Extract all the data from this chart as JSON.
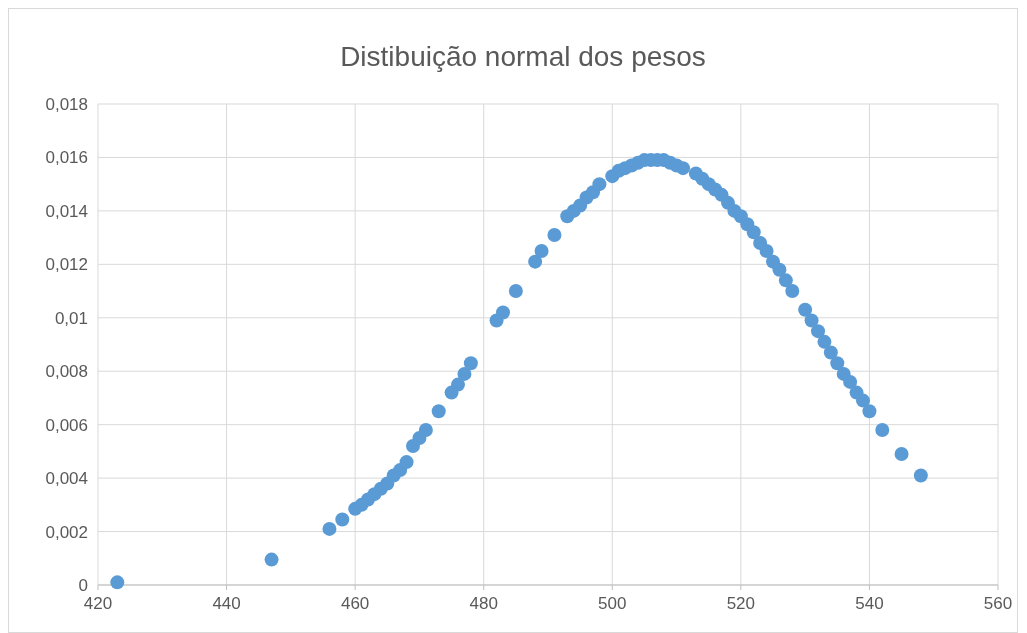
{
  "chart_data": {
    "type": "scatter",
    "title": "Distibuição normal dos pesos",
    "xlim": [
      420,
      560
    ],
    "xticks": [
      420,
      440,
      460,
      480,
      500,
      520,
      540,
      560
    ],
    "ylim": [
      0,
      0.018
    ],
    "yticks": [
      0,
      {
        "value": 0.002,
        "label": "0,002"
      },
      {
        "value": 0.004,
        "label": "0,004"
      },
      {
        "value": 0.006,
        "label": "0,006"
      },
      {
        "value": 0.008,
        "label": "0,008"
      },
      {
        "value": 0.01,
        "label": "0,01"
      },
      {
        "value": 0.012,
        "label": "0,012"
      },
      {
        "value": 0.014,
        "label": "0,014"
      },
      {
        "value": 0.016,
        "label": "0,016"
      },
      {
        "value": 0.018,
        "label": "0,018"
      }
    ],
    "grid": true,
    "marker": "circle",
    "series": [
      {
        "color": "#5b9bd5",
        "x": [
          423,
          447,
          456,
          458,
          460,
          461,
          462,
          463,
          464,
          465,
          466,
          467,
          468,
          469,
          470,
          471,
          473,
          475,
          476,
          477,
          478,
          482,
          483,
          485,
          488,
          489,
          491,
          493,
          494,
          495,
          496,
          497,
          498,
          500,
          501,
          502,
          503,
          504,
          505,
          506,
          507,
          508,
          509,
          510,
          511,
          513,
          514,
          515,
          516,
          517,
          518,
          519,
          520,
          521,
          522,
          523,
          524,
          525,
          526,
          527,
          528,
          530,
          531,
          532,
          533,
          534,
          535,
          536,
          537,
          538,
          539,
          540,
          542,
          545,
          548
        ],
        "values": [
          0.0001,
          0.00095,
          0.0021,
          0.00245,
          0.00285,
          0.003,
          0.0032,
          0.0034,
          0.0036,
          0.0038,
          0.0041,
          0.0043,
          0.0046,
          0.0052,
          0.0055,
          0.0058,
          0.0065,
          0.0072,
          0.0075,
          0.0079,
          0.0083,
          0.0099,
          0.0102,
          0.011,
          0.0121,
          0.0125,
          0.0131,
          0.0138,
          0.014,
          0.0142,
          0.0145,
          0.0147,
          0.015,
          0.0153,
          0.0155,
          0.0156,
          0.0157,
          0.0158,
          0.0159,
          0.0159,
          0.0159,
          0.0159,
          0.0158,
          0.0157,
          0.0156,
          0.0154,
          0.0152,
          0.015,
          0.0148,
          0.0146,
          0.0143,
          0.014,
          0.0138,
          0.0135,
          0.0132,
          0.0128,
          0.0125,
          0.0121,
          0.0118,
          0.0114,
          0.011,
          0.0103,
          0.0099,
          0.0095,
          0.0091,
          0.0087,
          0.0083,
          0.0079,
          0.0076,
          0.0072,
          0.0069,
          0.0065,
          0.0058,
          0.0049,
          0.0041
        ]
      }
    ]
  }
}
